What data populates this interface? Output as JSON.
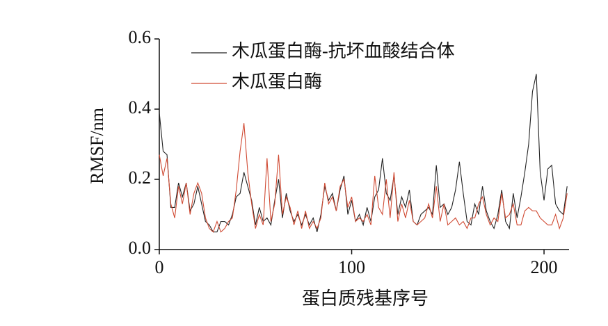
{
  "chart_data": {
    "type": "line",
    "xlabel": "蛋白质残基序号",
    "ylabel": "RMSF/nm",
    "xlim": [
      0,
      213
    ],
    "ylim": [
      0,
      0.6
    ],
    "xticks": [
      0,
      100,
      200
    ],
    "yticks": [
      {
        "value": 0,
        "label": "0.0"
      },
      {
        "value": 0.2,
        "label": "0.2"
      },
      {
        "value": 0.4,
        "label": "0.4"
      },
      {
        "value": 0.6,
        "label": "0.6"
      }
    ],
    "legend": "upper left",
    "grid": false,
    "x": [
      0,
      2,
      4,
      6,
      8,
      10,
      12,
      14,
      16,
      18,
      20,
      22,
      24,
      26,
      28,
      30,
      32,
      34,
      36,
      38,
      40,
      42,
      44,
      46,
      48,
      50,
      52,
      54,
      56,
      58,
      60,
      62,
      64,
      66,
      68,
      70,
      72,
      74,
      76,
      78,
      80,
      82,
      84,
      86,
      88,
      90,
      92,
      94,
      96,
      98,
      100,
      102,
      104,
      106,
      108,
      110,
      112,
      114,
      116,
      118,
      120,
      122,
      124,
      126,
      128,
      130,
      132,
      134,
      136,
      138,
      140,
      142,
      144,
      146,
      148,
      150,
      152,
      154,
      156,
      158,
      160,
      162,
      164,
      166,
      168,
      170,
      172,
      174,
      176,
      178,
      180,
      182,
      184,
      186,
      188,
      190,
      192,
      194,
      196,
      198,
      200,
      202,
      204,
      206,
      208,
      210,
      212
    ],
    "series": [
      {
        "name": "木瓜蛋白酶-抗坏血酸结合体",
        "color": "#222222",
        "values": [
          0.39,
          0.28,
          0.27,
          0.12,
          0.12,
          0.19,
          0.15,
          0.19,
          0.11,
          0.13,
          0.18,
          0.13,
          0.08,
          0.07,
          0.05,
          0.05,
          0.08,
          0.08,
          0.07,
          0.1,
          0.15,
          0.16,
          0.22,
          0.18,
          0.14,
          0.07,
          0.12,
          0.08,
          0.09,
          0.07,
          0.14,
          0.2,
          0.09,
          0.16,
          0.11,
          0.08,
          0.1,
          0.07,
          0.1,
          0.07,
          0.09,
          0.05,
          0.1,
          0.18,
          0.14,
          0.16,
          0.11,
          0.17,
          0.21,
          0.1,
          0.14,
          0.08,
          0.1,
          0.07,
          0.12,
          0.08,
          0.15,
          0.17,
          0.26,
          0.16,
          0.14,
          0.21,
          0.1,
          0.15,
          0.12,
          0.17,
          0.08,
          0.07,
          0.1,
          0.11,
          0.12,
          0.1,
          0.24,
          0.12,
          0.13,
          0.1,
          0.12,
          0.17,
          0.25,
          0.16,
          0.08,
          0.07,
          0.13,
          0.1,
          0.18,
          0.11,
          0.08,
          0.06,
          0.1,
          0.17,
          0.08,
          0.06,
          0.16,
          0.09,
          0.15,
          0.22,
          0.3,
          0.45,
          0.5,
          0.22,
          0.14,
          0.23,
          0.24,
          0.13,
          0.11,
          0.1,
          0.18
        ]
      },
      {
        "name": "木瓜蛋白酶",
        "color": "#d04a33",
        "values": [
          0.27,
          0.21,
          0.26,
          0.13,
          0.09,
          0.18,
          0.13,
          0.19,
          0.1,
          0.16,
          0.19,
          0.16,
          0.09,
          0.06,
          0.05,
          0.08,
          0.05,
          0.06,
          0.08,
          0.09,
          0.17,
          0.28,
          0.36,
          0.22,
          0.13,
          0.06,
          0.1,
          0.07,
          0.26,
          0.08,
          0.13,
          0.27,
          0.1,
          0.15,
          0.12,
          0.07,
          0.11,
          0.06,
          0.11,
          0.06,
          0.08,
          0.06,
          0.09,
          0.19,
          0.13,
          0.15,
          0.11,
          0.18,
          0.2,
          0.12,
          0.15,
          0.08,
          0.09,
          0.08,
          0.1,
          0.07,
          0.21,
          0.12,
          0.1,
          0.2,
          0.09,
          0.22,
          0.08,
          0.13,
          0.09,
          0.14,
          0.08,
          0.07,
          0.08,
          0.09,
          0.13,
          0.09,
          0.18,
          0.08,
          0.13,
          0.07,
          0.08,
          0.09,
          0.07,
          0.08,
          0.06,
          0.09,
          0.09,
          0.13,
          0.15,
          0.1,
          0.07,
          0.09,
          0.08,
          0.16,
          0.09,
          0.1,
          0.13,
          0.07,
          0.07,
          0.11,
          0.12,
          0.11,
          0.11,
          0.09,
          0.08,
          0.07,
          0.07,
          0.1,
          0.06,
          0.09,
          0.16
        ]
      }
    ]
  }
}
